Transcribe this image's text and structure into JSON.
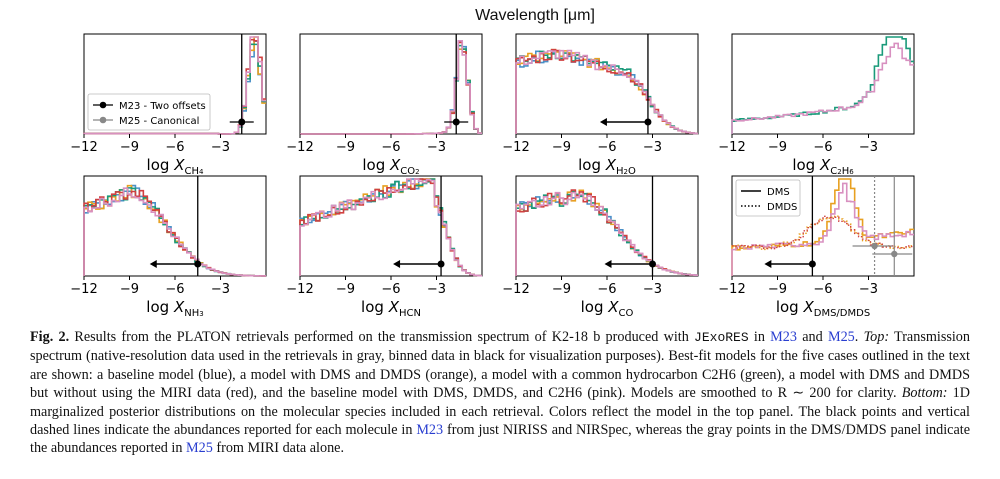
{
  "figure_top_label": "Wavelength [μm]",
  "chart_data": [
    {
      "type": "histogram",
      "panel": "CH4",
      "xlabel": "log X_CH4",
      "xticks": [
        -12,
        -9,
        -6,
        -3
      ],
      "xlim": [
        -12,
        0
      ],
      "reported_M23": {
        "value": -1.6,
        "type": "point"
      },
      "legend": [
        {
          "label": "M23 - Two offsets",
          "color": "#000000"
        },
        {
          "label": "M25 - Canonical",
          "color": "#888888"
        }
      ]
    },
    {
      "type": "histogram",
      "panel": "CO2",
      "xlabel": "log X_CO2",
      "xticks": [
        -12,
        -9,
        -6,
        -3
      ],
      "xlim": [
        -12,
        0
      ],
      "reported_M23": {
        "value": -1.7,
        "type": "point"
      }
    },
    {
      "type": "histogram",
      "panel": "H2O",
      "xlabel": "log X_H2O",
      "xticks": [
        -12,
        -9,
        -6,
        -3
      ],
      "xlim": [
        -12,
        0
      ],
      "reported_M23": {
        "value": -3.3,
        "type": "upper_limit"
      }
    },
    {
      "type": "histogram",
      "panel": "C2H6",
      "xlabel": "log X_C2H6",
      "xticks": [
        -12,
        -9,
        -6,
        -3
      ],
      "xlim": [
        -12,
        0
      ]
    },
    {
      "type": "histogram",
      "panel": "NH3",
      "xlabel": "log X_NH3",
      "xticks": [
        -12,
        -9,
        -6,
        -3
      ],
      "xlim": [
        -12,
        0
      ],
      "reported_M23": {
        "value": -4.5,
        "type": "upper_limit"
      }
    },
    {
      "type": "histogram",
      "panel": "HCN",
      "xlabel": "log X_HCN",
      "xticks": [
        -12,
        -9,
        -6,
        -3
      ],
      "xlim": [
        -12,
        0
      ],
      "reported_M23": {
        "value": -2.7,
        "type": "upper_limit"
      }
    },
    {
      "type": "histogram",
      "panel": "CO",
      "xlabel": "log X_CO",
      "xticks": [
        -12,
        -9,
        -6,
        -3
      ],
      "xlim": [
        -12,
        0
      ],
      "reported_M23": {
        "value": -3.0,
        "type": "upper_limit"
      }
    },
    {
      "type": "histogram",
      "panel": "DMS/DMDS",
      "xlabel": "log X_DMS/DMDS",
      "xticks": [
        -12,
        -9,
        -6,
        -3
      ],
      "xlim": [
        -12,
        0
      ],
      "reported_M23": {
        "value": -6.7,
        "type": "upper_limit"
      },
      "reported_M25": [
        {
          "value": -2.6
        },
        {
          "value": -1.3
        }
      ],
      "legend": [
        {
          "label": "DMS",
          "style": "solid"
        },
        {
          "label": "DMDS",
          "style": "dotted"
        }
      ]
    }
  ],
  "colors": {
    "baseline": "#4a90c8",
    "dms_dmds": "#e8a020",
    "c2h6": "#1a9a7a",
    "no_miri": "#d04040",
    "all": "#d890c0"
  },
  "caption": {
    "label": "Fig. 2.",
    "text1": " Results from the PLATON retrievals performed on the transmission spectrum of K2-18 b produced with ",
    "code": "JExoRES",
    "text2": " in ",
    "ref1": "M23",
    "text3": " and ",
    "ref2": "M25",
    "text4": ". ",
    "top_label": "Top:",
    "text5": " Transmission spectrum (native-resolution data used in the retrievals in gray, binned data in black for visualization purposes). Best-fit models for the five cases outlined in the text are shown: a baseline model (blue), a model with DMS and DMDS (orange), a model with a common hydrocarbon C2H6 (green), a model with DMS and DMDS but without using the MIRI data (red), and the baseline model with DMS, DMDS, and C2H6 (pink). Models are smoothed to R ∼ 200 for clarity. ",
    "bottom_label": "Bottom:",
    "text6": " 1D marginalized posterior distributions on the molecular species included in each retrieval. Colors reflect the model in the top panel. The black points and vertical dashed lines indicate the abundances reported for each molecule in ",
    "ref3": "M23",
    "text7": " from just NIRISS and NIRSpec, whereas the gray points in the DMS/DMDS panel indicate the abundances reported in ",
    "ref4": "M25",
    "text8": " from MIRI data alone."
  }
}
